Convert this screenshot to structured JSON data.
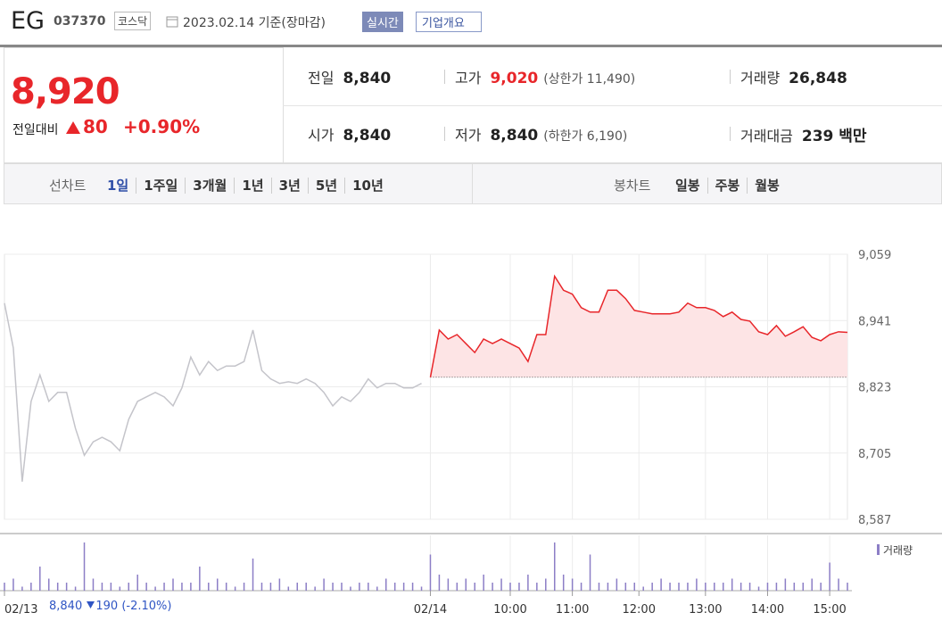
{
  "header": {
    "name": "EG",
    "code": "037370",
    "market": "코스닥",
    "date": "2023.02.14 기준(장마감)",
    "buttons": [
      "실시간",
      "기업개요"
    ]
  },
  "quote": {
    "price": "8,920",
    "change_label": "전일대비",
    "change": "80",
    "change_pct": "+0.90%"
  },
  "stats": [
    {
      "label": "전일",
      "value": "8,840"
    },
    {
      "label": "고가",
      "value": "9,020",
      "note": "(상한가 11,490)"
    },
    {
      "label": "거래량",
      "value": "26,848"
    },
    {
      "label": "시가",
      "value": "8,840"
    },
    {
      "label": "저가",
      "value": "8,840",
      "note": "(하한가 6,190)"
    },
    {
      "label": "거래대금",
      "value": "239 백만"
    }
  ],
  "tabs": {
    "line_label": "선차트",
    "line_periods": [
      "1일",
      "1주일",
      "3개월",
      "1년",
      "3년",
      "5년",
      "10년"
    ],
    "selected": 0,
    "candle_label": "봉차트",
    "candle_periods": [
      "일봉",
      "주봉",
      "월봉"
    ]
  },
  "chart_data": {
    "type": "line",
    "xlim": [
      0,
      95
    ],
    "xticks": [
      {
        "value": 0,
        "label": "02/13"
      },
      {
        "value": 48,
        "label": "02/14"
      },
      {
        "value": 57,
        "label": "10:00"
      },
      {
        "value": 64,
        "label": "11:00"
      },
      {
        "value": 71.5,
        "label": "12:00"
      },
      {
        "value": 79,
        "label": "13:00"
      },
      {
        "value": 86,
        "label": "14:00"
      },
      {
        "value": 93,
        "label": "15:00"
      }
    ],
    "ylim": [
      8587,
      9059
    ],
    "yticks": [
      {
        "value": 9059,
        "label": "9,059"
      },
      {
        "value": 8941,
        "label": "8,941"
      },
      {
        "value": 8823,
        "label": "8,823"
      },
      {
        "value": 8705,
        "label": "8,705"
      },
      {
        "value": 8587,
        "label": "8,587"
      }
    ],
    "grid": true,
    "base_value": 8840,
    "series": [
      {
        "color": "#c4c4ca",
        "values": [
          8972,
          8892,
          8654,
          8797,
          8844,
          8797,
          8813,
          8813,
          8749,
          8701,
          8725,
          8733,
          8725,
          8709,
          8765,
          8797,
          8805,
          8813,
          8805,
          8789,
          8821,
          8876,
          8844,
          8868,
          8852,
          8860,
          8860,
          8868,
          8924,
          8852,
          8837,
          8829,
          8832,
          8829,
          8837,
          8829,
          8813,
          8789,
          8805,
          8797,
          8813,
          8837,
          8821,
          8829,
          8829,
          8821,
          8821,
          8829,
          null,
          null,
          null,
          null,
          null,
          null,
          null,
          null,
          null,
          null,
          null,
          null,
          null,
          null,
          null,
          null,
          null,
          null,
          null,
          null,
          null,
          null,
          null,
          null,
          null,
          null,
          null,
          null,
          null,
          null,
          null,
          null,
          null,
          null,
          null,
          null,
          null,
          null,
          null,
          null,
          null,
          null,
          null,
          null,
          null,
          null,
          null,
          null
        ]
      },
      {
        "color": "#e8262a",
        "fill": "#fde4e5",
        "values": [
          null,
          null,
          null,
          null,
          null,
          null,
          null,
          null,
          null,
          null,
          null,
          null,
          null,
          null,
          null,
          null,
          null,
          null,
          null,
          null,
          null,
          null,
          null,
          null,
          null,
          null,
          null,
          null,
          null,
          null,
          null,
          null,
          null,
          null,
          null,
          null,
          null,
          null,
          null,
          null,
          null,
          null,
          null,
          null,
          null,
          null,
          null,
          null,
          8840,
          8924,
          8908,
          8916,
          8900,
          8884,
          8908,
          8900,
          8908,
          8900,
          8892,
          8868,
          8916,
          8916,
          9020,
          8995,
          8988,
          8964,
          8956,
          8956,
          8995,
          8995,
          8980,
          8959,
          8956,
          8953,
          8953,
          8953,
          8956,
          8972,
          8964,
          8964,
          8959,
          8948,
          8956,
          8943,
          8940,
          8921,
          8916,
          8932,
          8913,
          8921,
          8930,
          8911,
          8905,
          8916,
          8921,
          8920
        ]
      }
    ],
    "volume": {
      "name": "거래량",
      "color": "#8c7ec6",
      "values": [
        2,
        3,
        1,
        2,
        6,
        3,
        2,
        2,
        1,
        12,
        3,
        2,
        2,
        1,
        2,
        4,
        2,
        1,
        2,
        3,
        2,
        2,
        6,
        2,
        3,
        2,
        1,
        2,
        8,
        2,
        2,
        3,
        1,
        2,
        2,
        1,
        3,
        2,
        2,
        1,
        2,
        2,
        1,
        3,
        2,
        2,
        2,
        1,
        9,
        4,
        3,
        2,
        3,
        2,
        4,
        2,
        3,
        2,
        2,
        4,
        2,
        3,
        12,
        4,
        3,
        2,
        9,
        2,
        2,
        3,
        2,
        2,
        1,
        2,
        3,
        2,
        2,
        2,
        3,
        2,
        2,
        2,
        3,
        2,
        2,
        1,
        2,
        2,
        3,
        2,
        2,
        3,
        2,
        7,
        3,
        2
      ]
    }
  },
  "footer": {
    "prev_close": "8,840",
    "prev_change": "190",
    "prev_change_pct": "(-2.10%)"
  }
}
